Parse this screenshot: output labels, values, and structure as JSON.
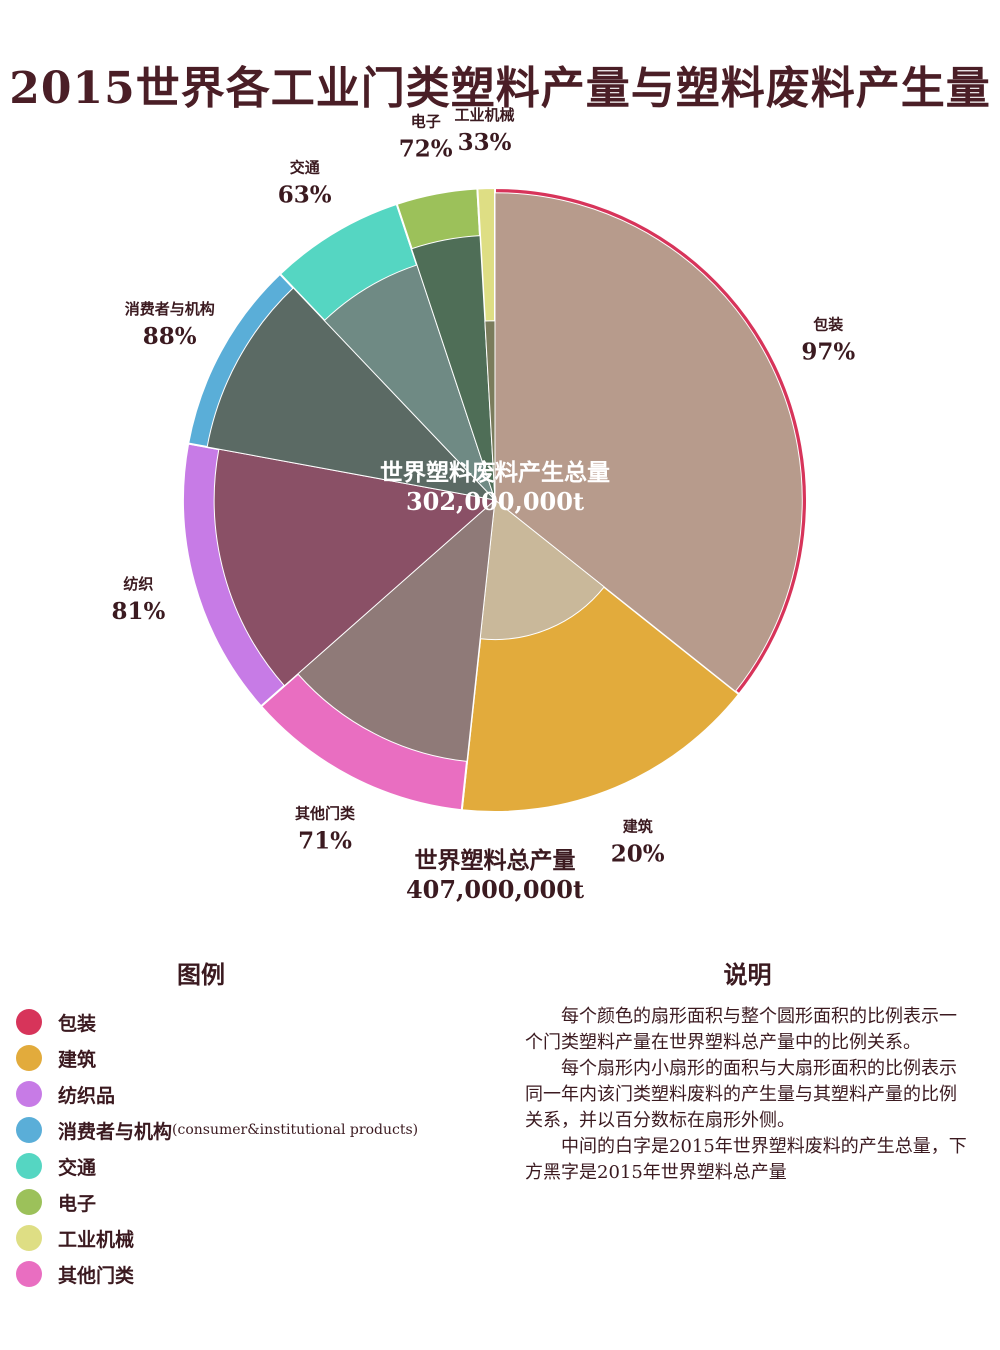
{
  "title": "2015世界各工业门类塑料产量与塑料废料产生量",
  "center": {
    "waste_label": "世界塑料废料产生总量",
    "waste_value": "302,000,000t",
    "production_label": "世界塑料总产量",
    "production_value": "407,000,000t"
  },
  "chart_data": {
    "type": "pie",
    "title": "2015世界各工业门类塑料产量与塑料废料产生量",
    "total_production": 407000000,
    "total_waste": 302000000,
    "unit": "t",
    "series": [
      {
        "name": "包装",
        "label": "包装",
        "production_share": 0.357,
        "waste_ratio": 97,
        "waste_ratio_label": "97%",
        "color": "#d7345a"
      },
      {
        "name": "建筑",
        "label": "建筑",
        "production_share": 0.16,
        "waste_ratio": 20,
        "waste_ratio_label": "20%",
        "color": "#e2ab3c"
      },
      {
        "name": "其他门类",
        "label": "其他门类",
        "production_share": 0.118,
        "waste_ratio": 71,
        "waste_ratio_label": "71%",
        "color": "#e96ec1"
      },
      {
        "name": "纺织品",
        "label": "纺织",
        "production_share": 0.144,
        "waste_ratio": 81,
        "waste_ratio_label": "81%",
        "color": "#c77be6"
      },
      {
        "name": "消费者与机构",
        "label": "消费者与机构",
        "production_share": 0.1,
        "waste_ratio": 88,
        "waste_ratio_label": "88%",
        "color": "#5aaed8"
      },
      {
        "name": "交通",
        "label": "交通",
        "production_share": 0.07,
        "waste_ratio": 63,
        "waste_ratio_label": "63%",
        "color": "#55d6c2"
      },
      {
        "name": "电子",
        "label": "电子",
        "production_share": 0.042,
        "waste_ratio": 72,
        "waste_ratio_label": "72%",
        "color": "#9cc15a"
      },
      {
        "name": "工业机械",
        "label": "工业机械",
        "production_share": 0.009,
        "waste_ratio": 33,
        "waste_ratio_label": "33%",
        "color": "#dede84"
      }
    ]
  },
  "legend": {
    "title": "图例",
    "items": [
      {
        "label": "包装",
        "note": "",
        "color": "#d7345a"
      },
      {
        "label": "建筑",
        "note": "",
        "color": "#e2ab3c"
      },
      {
        "label": "纺织品",
        "note": "",
        "color": "#c77be6"
      },
      {
        "label": "消费者与机构",
        "note": "(consumer&institutional products)",
        "color": "#5aaed8"
      },
      {
        "label": "交通",
        "note": "",
        "color": "#55d6c2"
      },
      {
        "label": "电子",
        "note": "",
        "color": "#9cc15a"
      },
      {
        "label": "工业机械",
        "note": "",
        "color": "#dede84"
      },
      {
        "label": "其他门类",
        "note": "",
        "color": "#e96ec1"
      }
    ]
  },
  "notes": {
    "title": "说明",
    "paragraphs": [
      "每个颜色的扇形面积与整个圆形面积的比例表示一个门类塑料产量在世界塑料总产量中的比例关系。",
      "每个扇形内小扇形的面积与大扇形面积的比例表示同一年内该门类塑料废料的产生量与其塑料产量的比例关系，并以百分数标在扇形外侧。",
      "中间的白字是2015年世界塑料废料的产生总量，下方黑字是2015年世界塑料总产量"
    ]
  }
}
